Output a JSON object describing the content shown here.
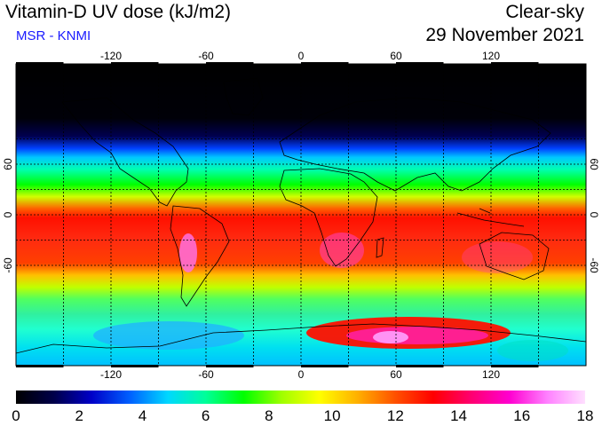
{
  "header": {
    "title": "Vitamin-D UV dose (kJ/m2)",
    "subtitle": "MSR - KNMI",
    "mode": "Clear-sky",
    "date": "29 November 2021"
  },
  "map": {
    "lon_ticks": [
      "-120",
      "-60",
      "0",
      "60",
      "120"
    ],
    "lat_ticks_left": [
      "60",
      "0",
      "-60"
    ],
    "lat_ticks_right": [
      "60",
      "0",
      "-60"
    ],
    "grid": true
  },
  "colorbar": {
    "labels": [
      "0",
      "2",
      "4",
      "6",
      "8",
      "10",
      "12",
      "14",
      "16",
      "18"
    ],
    "min": 0,
    "max": 18,
    "colors": [
      "#000000",
      "#00004a",
      "#0000c8",
      "#0060ff",
      "#00d8ff",
      "#00ff9a",
      "#00ff00",
      "#a0ff00",
      "#ffff00",
      "#ffb000",
      "#ff5000",
      "#ff0000",
      "#ff0070",
      "#ff00d0",
      "#ff80ff",
      "#ffe0ff"
    ]
  }
}
